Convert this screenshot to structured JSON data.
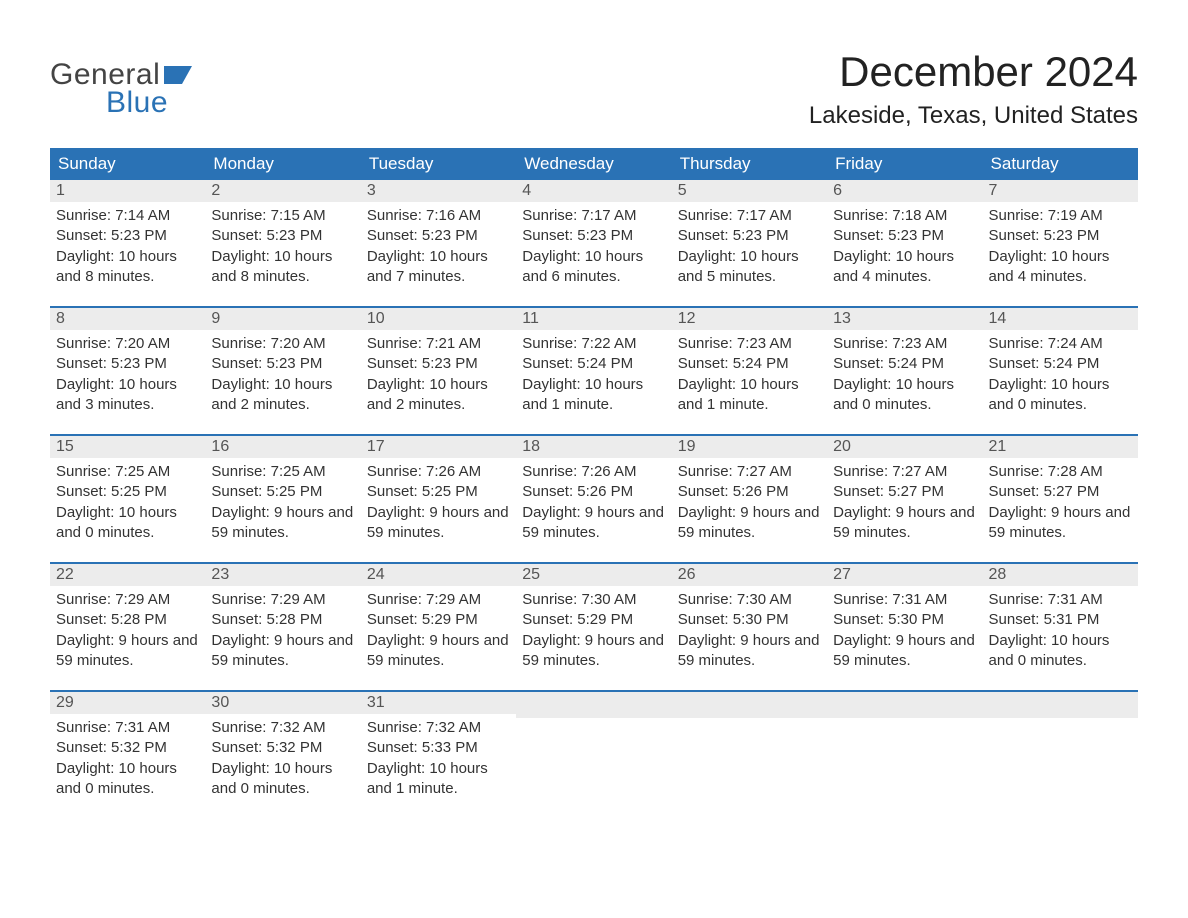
{
  "logo": {
    "word1": "General",
    "word2": "Blue"
  },
  "title": "December 2024",
  "location": "Lakeside, Texas, United States",
  "day_headers": [
    "Sunday",
    "Monday",
    "Tuesday",
    "Wednesday",
    "Thursday",
    "Friday",
    "Saturday"
  ],
  "colors": {
    "header_bg": "#2a72b5",
    "header_text": "#ffffff",
    "daynum_bg": "#ececec",
    "sep": "#2a72b5",
    "logo_gray": "#444444",
    "logo_blue": "#2a72b5"
  },
  "weeks": [
    [
      {
        "n": "1",
        "sunrise": "Sunrise: 7:14 AM",
        "sunset": "Sunset: 5:23 PM",
        "daylight": "Daylight: 10 hours and 8 minutes."
      },
      {
        "n": "2",
        "sunrise": "Sunrise: 7:15 AM",
        "sunset": "Sunset: 5:23 PM",
        "daylight": "Daylight: 10 hours and 8 minutes."
      },
      {
        "n": "3",
        "sunrise": "Sunrise: 7:16 AM",
        "sunset": "Sunset: 5:23 PM",
        "daylight": "Daylight: 10 hours and 7 minutes."
      },
      {
        "n": "4",
        "sunrise": "Sunrise: 7:17 AM",
        "sunset": "Sunset: 5:23 PM",
        "daylight": "Daylight: 10 hours and 6 minutes."
      },
      {
        "n": "5",
        "sunrise": "Sunrise: 7:17 AM",
        "sunset": "Sunset: 5:23 PM",
        "daylight": "Daylight: 10 hours and 5 minutes."
      },
      {
        "n": "6",
        "sunrise": "Sunrise: 7:18 AM",
        "sunset": "Sunset: 5:23 PM",
        "daylight": "Daylight: 10 hours and 4 minutes."
      },
      {
        "n": "7",
        "sunrise": "Sunrise: 7:19 AM",
        "sunset": "Sunset: 5:23 PM",
        "daylight": "Daylight: 10 hours and 4 minutes."
      }
    ],
    [
      {
        "n": "8",
        "sunrise": "Sunrise: 7:20 AM",
        "sunset": "Sunset: 5:23 PM",
        "daylight": "Daylight: 10 hours and 3 minutes."
      },
      {
        "n": "9",
        "sunrise": "Sunrise: 7:20 AM",
        "sunset": "Sunset: 5:23 PM",
        "daylight": "Daylight: 10 hours and 2 minutes."
      },
      {
        "n": "10",
        "sunrise": "Sunrise: 7:21 AM",
        "sunset": "Sunset: 5:23 PM",
        "daylight": "Daylight: 10 hours and 2 minutes."
      },
      {
        "n": "11",
        "sunrise": "Sunrise: 7:22 AM",
        "sunset": "Sunset: 5:24 PM",
        "daylight": "Daylight: 10 hours and 1 minute."
      },
      {
        "n": "12",
        "sunrise": "Sunrise: 7:23 AM",
        "sunset": "Sunset: 5:24 PM",
        "daylight": "Daylight: 10 hours and 1 minute."
      },
      {
        "n": "13",
        "sunrise": "Sunrise: 7:23 AM",
        "sunset": "Sunset: 5:24 PM",
        "daylight": "Daylight: 10 hours and 0 minutes."
      },
      {
        "n": "14",
        "sunrise": "Sunrise: 7:24 AM",
        "sunset": "Sunset: 5:24 PM",
        "daylight": "Daylight: 10 hours and 0 minutes."
      }
    ],
    [
      {
        "n": "15",
        "sunrise": "Sunrise: 7:25 AM",
        "sunset": "Sunset: 5:25 PM",
        "daylight": "Daylight: 10 hours and 0 minutes."
      },
      {
        "n": "16",
        "sunrise": "Sunrise: 7:25 AM",
        "sunset": "Sunset: 5:25 PM",
        "daylight": "Daylight: 9 hours and 59 minutes."
      },
      {
        "n": "17",
        "sunrise": "Sunrise: 7:26 AM",
        "sunset": "Sunset: 5:25 PM",
        "daylight": "Daylight: 9 hours and 59 minutes."
      },
      {
        "n": "18",
        "sunrise": "Sunrise: 7:26 AM",
        "sunset": "Sunset: 5:26 PM",
        "daylight": "Daylight: 9 hours and 59 minutes."
      },
      {
        "n": "19",
        "sunrise": "Sunrise: 7:27 AM",
        "sunset": "Sunset: 5:26 PM",
        "daylight": "Daylight: 9 hours and 59 minutes."
      },
      {
        "n": "20",
        "sunrise": "Sunrise: 7:27 AM",
        "sunset": "Sunset: 5:27 PM",
        "daylight": "Daylight: 9 hours and 59 minutes."
      },
      {
        "n": "21",
        "sunrise": "Sunrise: 7:28 AM",
        "sunset": "Sunset: 5:27 PM",
        "daylight": "Daylight: 9 hours and 59 minutes."
      }
    ],
    [
      {
        "n": "22",
        "sunrise": "Sunrise: 7:29 AM",
        "sunset": "Sunset: 5:28 PM",
        "daylight": "Daylight: 9 hours and 59 minutes."
      },
      {
        "n": "23",
        "sunrise": "Sunrise: 7:29 AM",
        "sunset": "Sunset: 5:28 PM",
        "daylight": "Daylight: 9 hours and 59 minutes."
      },
      {
        "n": "24",
        "sunrise": "Sunrise: 7:29 AM",
        "sunset": "Sunset: 5:29 PM",
        "daylight": "Daylight: 9 hours and 59 minutes."
      },
      {
        "n": "25",
        "sunrise": "Sunrise: 7:30 AM",
        "sunset": "Sunset: 5:29 PM",
        "daylight": "Daylight: 9 hours and 59 minutes."
      },
      {
        "n": "26",
        "sunrise": "Sunrise: 7:30 AM",
        "sunset": "Sunset: 5:30 PM",
        "daylight": "Daylight: 9 hours and 59 minutes."
      },
      {
        "n": "27",
        "sunrise": "Sunrise: 7:31 AM",
        "sunset": "Sunset: 5:30 PM",
        "daylight": "Daylight: 9 hours and 59 minutes."
      },
      {
        "n": "28",
        "sunrise": "Sunrise: 7:31 AM",
        "sunset": "Sunset: 5:31 PM",
        "daylight": "Daylight: 10 hours and 0 minutes."
      }
    ],
    [
      {
        "n": "29",
        "sunrise": "Sunrise: 7:31 AM",
        "sunset": "Sunset: 5:32 PM",
        "daylight": "Daylight: 10 hours and 0 minutes."
      },
      {
        "n": "30",
        "sunrise": "Sunrise: 7:32 AM",
        "sunset": "Sunset: 5:32 PM",
        "daylight": "Daylight: 10 hours and 0 minutes."
      },
      {
        "n": "31",
        "sunrise": "Sunrise: 7:32 AM",
        "sunset": "Sunset: 5:33 PM",
        "daylight": "Daylight: 10 hours and 1 minute."
      },
      {
        "n": "",
        "sunrise": "",
        "sunset": "",
        "daylight": ""
      },
      {
        "n": "",
        "sunrise": "",
        "sunset": "",
        "daylight": ""
      },
      {
        "n": "",
        "sunrise": "",
        "sunset": "",
        "daylight": ""
      },
      {
        "n": "",
        "sunrise": "",
        "sunset": "",
        "daylight": ""
      }
    ]
  ]
}
